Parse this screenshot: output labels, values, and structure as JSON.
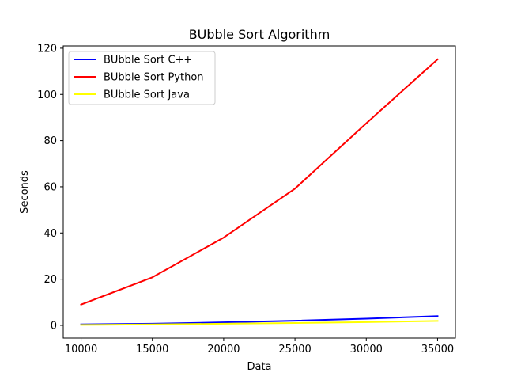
{
  "chart_data": {
    "type": "line",
    "title": "BUbble Sort Algorithm",
    "xlabel": "Data",
    "ylabel": "Seconds",
    "x": [
      10000,
      15000,
      20000,
      25000,
      30000,
      35000
    ],
    "xticks": [
      10000,
      15000,
      20000,
      25000,
      30000,
      35000
    ],
    "yticks": [
      0,
      20,
      40,
      60,
      80,
      100,
      120
    ],
    "xlim": [
      8750,
      36250
    ],
    "ylim": [
      -5.5,
      121
    ],
    "grid": false,
    "legend_position": "top-left",
    "series": [
      {
        "name": "BUbble Sort C++",
        "color": "#0000ff",
        "values": [
          0.4,
          0.7,
          1.3,
          2.0,
          2.9,
          4.0
        ]
      },
      {
        "name": "BUbble Sort Python",
        "color": "#ff0000",
        "values": [
          9.0,
          20.8,
          38.0,
          59.2,
          87.5,
          115.2
        ]
      },
      {
        "name": "BUbble Sort Java",
        "color": "#ffff00",
        "values": [
          0.2,
          0.4,
          0.7,
          1.0,
          1.4,
          1.9
        ]
      }
    ]
  }
}
